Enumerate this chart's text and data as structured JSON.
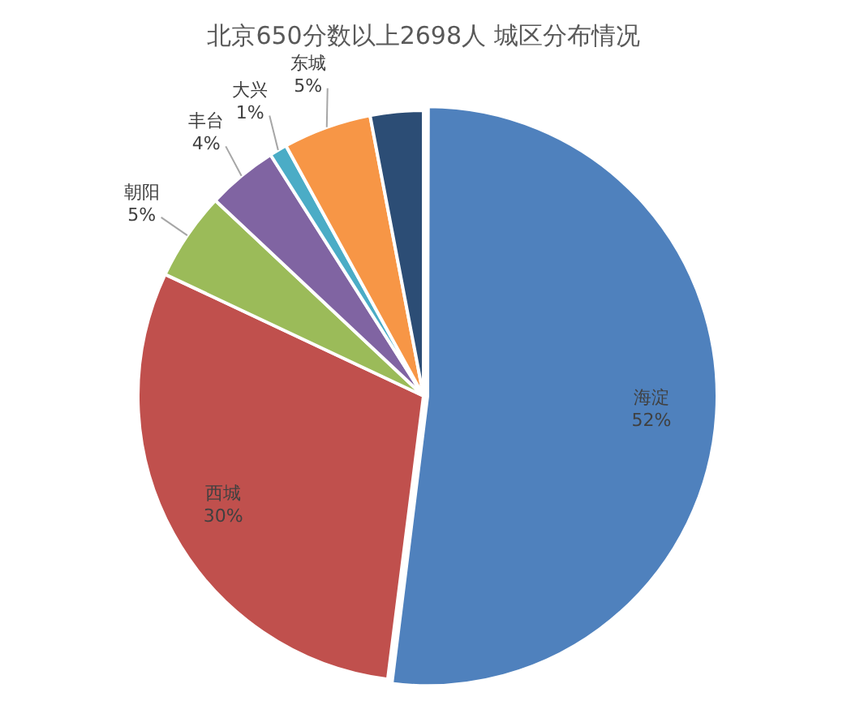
{
  "chart_data": {
    "type": "pie",
    "title": "北京650分数以上2698人 城区分布情况",
    "categories": [
      "海淀",
      "西城",
      "朝阳",
      "丰台",
      "大兴",
      "东城",
      null
    ],
    "values": [
      52,
      30,
      5,
      4,
      1,
      5,
      3
    ],
    "value_labels": [
      "52%",
      "30%",
      "5%",
      "4%",
      "1%",
      "5%",
      null
    ],
    "colors": [
      "#4f81bd",
      "#c0504d",
      "#9bbb59",
      "#8064a2",
      "#4bacc6",
      "#f79646",
      "#2c4d75"
    ],
    "legend": false
  }
}
